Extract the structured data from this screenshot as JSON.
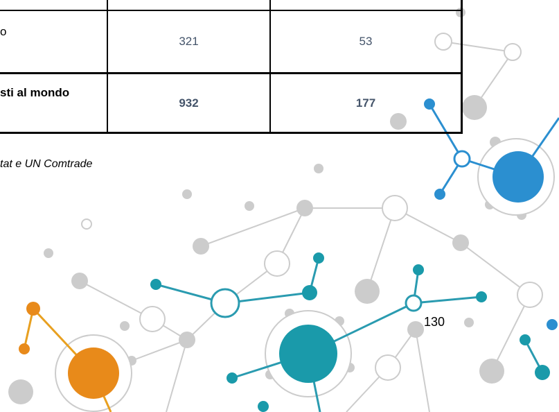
{
  "table": {
    "rows": [
      [
        "",
        "",
        ""
      ],
      [
        "o",
        321,
        53
      ],
      [
        "sti al mondo",
        932,
        177
      ]
    ]
  },
  "source": "tat e UN Comtrade",
  "page_number": "130"
}
